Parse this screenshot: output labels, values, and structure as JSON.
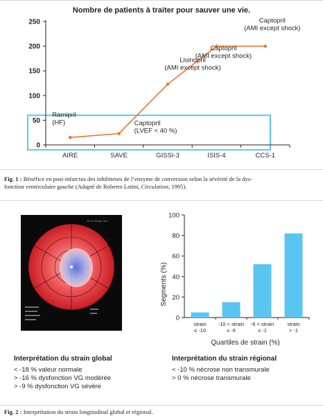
{
  "chart_data": [
    {
      "type": "line",
      "title": "Nombre de patients à traiter pour sauver une vie.",
      "categories": [
        "AIRE",
        "SAVE",
        "GISSI-3",
        "ISIS-4",
        "CCS-1"
      ],
      "values": [
        15,
        23,
        123,
        200,
        200
      ],
      "annotations": [
        {
          "lines": [
            "Ramipril",
            "(HF)"
          ]
        },
        {
          "lines": [
            "Captopril",
            "(LVEF < 40 %)"
          ]
        },
        {
          "lines": [
            "Lisinopril",
            "(AMI except shock)"
          ]
        },
        {
          "lines": [
            "Captopril",
            "(AMI except shock)"
          ]
        },
        {
          "lines": [
            "Captopril",
            "(AMI except shock)"
          ]
        }
      ],
      "yticks": [
        0,
        50,
        100,
        150,
        200,
        250
      ],
      "ylim": [
        0,
        250
      ],
      "line_color": "#e8772e",
      "highlight_color": "#5bc5f2"
    },
    {
      "type": "bar",
      "categories": [
        [
          "strain",
          "≤ -10"
        ],
        [
          "-10 < strain",
          "≤ -6"
        ],
        [
          "-6 < strain",
          "≤ -1"
        ],
        [
          "strain",
          "> -1"
        ]
      ],
      "values": [
        5,
        15,
        52,
        82
      ],
      "xlabel": "Quartiles de strain (%)",
      "ylabel": "Segments (%)",
      "yticks": [
        0,
        20,
        40,
        60,
        80,
        100
      ],
      "ylim": [
        0,
        100
      ],
      "bar_color": "#5bc5f2"
    }
  ],
  "fig1_caption": {
    "label": "Fig. 1 :",
    "line1": "Bénéfice en post-infarctus des inhibiteurs de l’enzyme de conversion selon la sévérité de la dys-",
    "line2_pre": "fonction ventriculaire gauche (Adapté de Roberto Latini, ",
    "line2_italic": "Circulation",
    "line2_post": ", 1995)."
  },
  "polar_map": {
    "title": "Pk ax Strain Sys",
    "colors": {
      "dark_red": "#b0121c",
      "red": "#e52d2d",
      "pink": "#f4a3a6",
      "blue": "#7f8fe0"
    }
  },
  "global_strain": {
    "title": "Interprétation du strain global",
    "items": [
      "< -18 % valeur normale",
      "> -16 % dysfonction VG modérée",
      "> -9 % dysfonction VG sévère"
    ]
  },
  "regional_strain": {
    "title": "Interprétation du strain régional",
    "items": [
      "< -10 % nécrose non transmurale",
      "> 0 % nécrose transmurale"
    ]
  },
  "fig2_caption": {
    "label": "Fig. 2 :",
    "text": "Interprétation du strain longitudinal global et régional."
  }
}
